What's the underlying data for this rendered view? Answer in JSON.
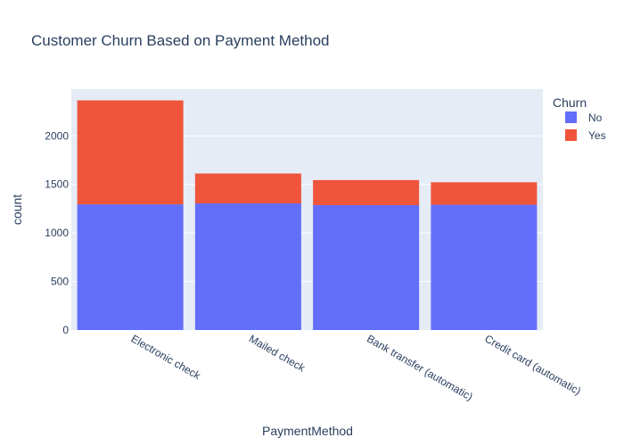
{
  "chart_data": {
    "type": "bar",
    "barmode": "stack",
    "title": "Customer Churn Based on Payment Method",
    "xlabel": "PaymentMethod",
    "ylabel": "count",
    "categories": [
      "Electronic check",
      "Mailed check",
      "Bank transfer (automatic)",
      "Credit card (automatic)"
    ],
    "series": [
      {
        "name": "No",
        "color": "#636efa",
        "values": [
          1294,
          1304,
          1286,
          1290
        ]
      },
      {
        "name": "Yes",
        "color": "#ef553b",
        "values": [
          1071,
          308,
          258,
          232
        ]
      }
    ],
    "ylim": [
      0,
      2480
    ],
    "yticks": [
      0,
      500,
      1000,
      1500,
      2000
    ],
    "grid": true,
    "legend": {
      "title": "Churn",
      "position": "top-right"
    },
    "background_color": "#e5ecf6"
  }
}
